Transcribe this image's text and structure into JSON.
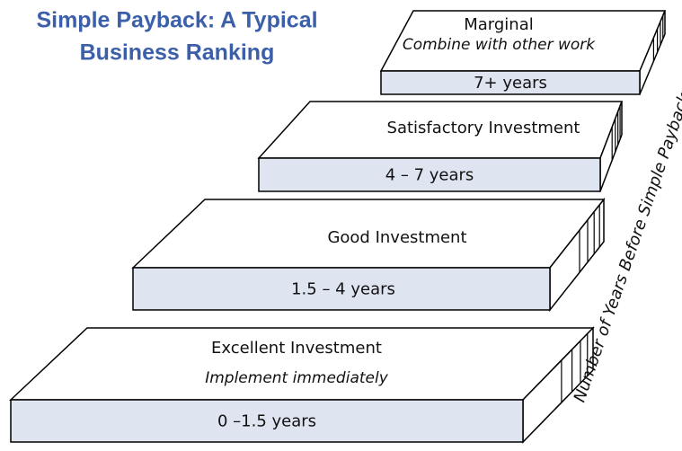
{
  "title": [
    "Simple Payback: A Typical",
    "Business Ranking"
  ],
  "axis_label": "Number of Years Before Simple Payback",
  "steps": [
    {
      "label": "Marginal",
      "note": "Combine with other work",
      "range": "7+ years"
    },
    {
      "label": "Satisfactory Investment",
      "range": "4 – 7 years"
    },
    {
      "label": "Good Investment",
      "range": "1.5 – 4 years"
    },
    {
      "label": "Excellent Investment",
      "note": "Implement immediately",
      "range": "0 –1.5 years"
    }
  ]
}
